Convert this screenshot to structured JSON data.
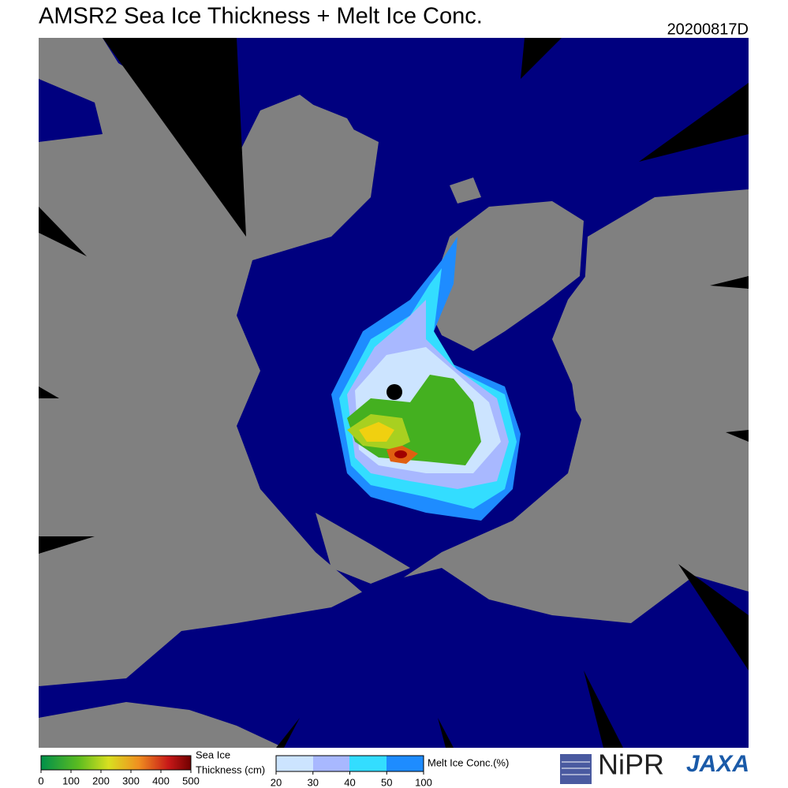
{
  "header": {
    "title": "AMSR2 Sea Ice Thickness + Melt Ice Conc.",
    "date": "20200817D"
  },
  "thickness_legend": {
    "label_lines": [
      "Sea Ice",
      "Thickness (cm)"
    ],
    "ticks": [
      0,
      100,
      200,
      300,
      400,
      500
    ]
  },
  "conc_legend": {
    "label": "Melt Ice Conc.(%)",
    "ticks": [
      20,
      30,
      40,
      50,
      100
    ]
  },
  "logos": {
    "nipr": "NiPR",
    "jaxa": "JAXA"
  }
}
